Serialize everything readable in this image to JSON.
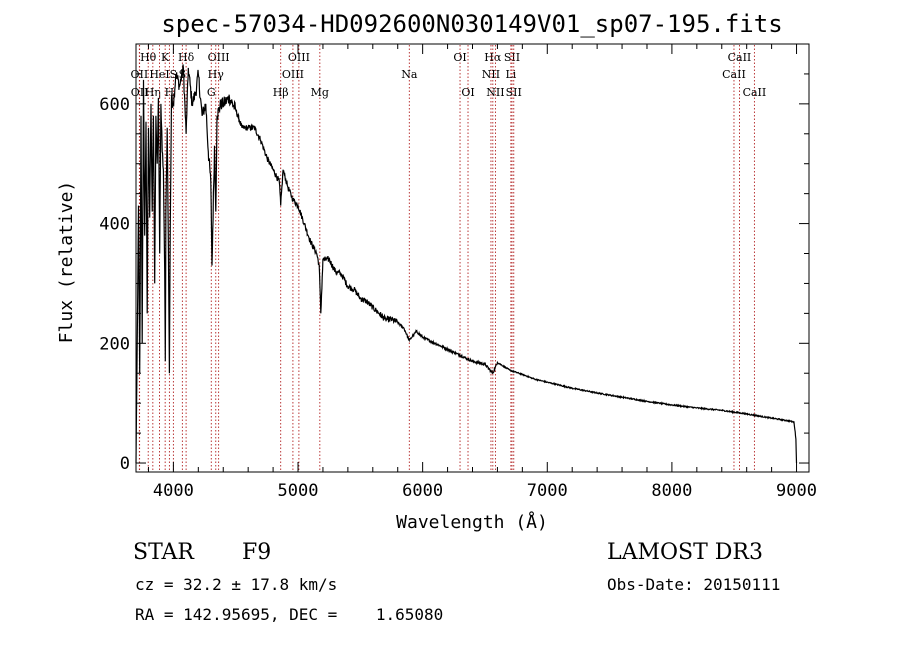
{
  "chart_data": {
    "type": "line",
    "title": "spec-57034-HD092600N030149V01_sp07-195.fits",
    "xlabel": "Wavelength (Å)",
    "ylabel": "Flux (relative)",
    "xlim": [
      3700,
      9100
    ],
    "ylim": [
      -15,
      700
    ],
    "x_ticks": [
      4000,
      5000,
      6000,
      7000,
      8000,
      9000
    ],
    "y_ticks": [
      0,
      200,
      400,
      600
    ],
    "series": [
      {
        "name": "flux",
        "x": [
          3700,
          3710,
          3720,
          3730,
          3740,
          3750,
          3760,
          3770,
          3780,
          3790,
          3800,
          3810,
          3820,
          3830,
          3840,
          3850,
          3860,
          3870,
          3880,
          3890,
          3900,
          3910,
          3920,
          3930,
          3935,
          3940,
          3950,
          3960,
          3968,
          3975,
          3985,
          4000,
          4020,
          4050,
          4080,
          4102,
          4120,
          4150,
          4180,
          4200,
          4230,
          4260,
          4280,
          4300,
          4310,
          4330,
          4340,
          4350,
          4380,
          4400,
          4450,
          4500,
          4550,
          4600,
          4650,
          4700,
          4750,
          4800,
          4850,
          4861,
          4880,
          4920,
          4960,
          5000,
          5050,
          5100,
          5150,
          5170,
          5183,
          5200,
          5250,
          5300,
          5350,
          5400,
          5450,
          5500,
          5550,
          5600,
          5650,
          5700,
          5750,
          5800,
          5850,
          5893,
          5950,
          6000,
          6100,
          6200,
          6300,
          6400,
          6500,
          6563,
          6600,
          6700,
          6800,
          6900,
          7000,
          7200,
          7400,
          7600,
          7800,
          8000,
          8200,
          8400,
          8600,
          8800,
          8950,
          8980,
          8995,
          9000
        ],
        "y": [
          0,
          200,
          430,
          150,
          580,
          200,
          640,
          380,
          570,
          250,
          560,
          410,
          600,
          420,
          580,
          300,
          580,
          500,
          610,
          350,
          600,
          520,
          490,
          320,
          170,
          420,
          560,
          360,
          150,
          400,
          610,
          600,
          650,
          630,
          660,
          550,
          660,
          600,
          620,
          650,
          580,
          600,
          520,
          470,
          330,
          530,
          420,
          580,
          600,
          600,
          610,
          590,
          560,
          560,
          560,
          540,
          510,
          490,
          470,
          430,
          490,
          460,
          440,
          430,
          400,
          370,
          350,
          330,
          250,
          340,
          340,
          320,
          315,
          295,
          290,
          275,
          270,
          260,
          250,
          240,
          240,
          235,
          225,
          205,
          220,
          210,
          200,
          190,
          180,
          170,
          165,
          150,
          168,
          155,
          148,
          140,
          135,
          125,
          117,
          110,
          103,
          97,
          92,
          88,
          82,
          75,
          70,
          68,
          40,
          0
        ]
      }
    ],
    "line_markers": [
      {
        "label": "Hθ",
        "wl": 3798,
        "row": 0
      },
      {
        "label": "OII",
        "wl": 3727,
        "row": 1
      },
      {
        "label": "OII",
        "wl": 3729,
        "row": 2
      },
      {
        "label": "Hη",
        "wl": 3835,
        "row": 2
      },
      {
        "label": "HeI",
        "wl": 3889,
        "row": 1
      },
      {
        "label": "K",
        "wl": 3934,
        "row": 0
      },
      {
        "label": "H",
        "wl": 3968,
        "row": 2
      },
      {
        "label": "S",
        "wl": 4000,
        "row": 1
      },
      {
        "label": "Hδ",
        "wl": 4102,
        "row": 0
      },
      {
        "label": "S",
        "wl": 4072,
        "row": 1
      },
      {
        "label": "OIII",
        "wl": 4363,
        "row": 0
      },
      {
        "label": "Hγ",
        "wl": 4340,
        "row": 1
      },
      {
        "label": "G",
        "wl": 4304,
        "row": 2
      },
      {
        "label": "Hβ",
        "wl": 4861,
        "row": 2
      },
      {
        "label": "OIII",
        "wl": 5007,
        "row": 0
      },
      {
        "label": "OIII",
        "wl": 4959,
        "row": 1
      },
      {
        "label": "Mg",
        "wl": 5175,
        "row": 2
      },
      {
        "label": "Na",
        "wl": 5893,
        "row": 1
      },
      {
        "label": "OI",
        "wl": 6300,
        "row": 0
      },
      {
        "label": "OI",
        "wl": 6364,
        "row": 2
      },
      {
        "label": "Hα",
        "wl": 6563,
        "row": 0
      },
      {
        "label": "SII",
        "wl": 6717,
        "row": 0
      },
      {
        "label": "NII",
        "wl": 6548,
        "row": 1
      },
      {
        "label": "Li",
        "wl": 6708,
        "row": 1
      },
      {
        "label": "NII",
        "wl": 6584,
        "row": 2
      },
      {
        "label": "SII",
        "wl": 6731,
        "row": 2
      },
      {
        "label": "CaII",
        "wl": 8542,
        "row": 0
      },
      {
        "label": "CaII",
        "wl": 8498,
        "row": 1
      },
      {
        "label": "CaII",
        "wl": 8662,
        "row": 2
      }
    ]
  },
  "info": {
    "object_class": "STAR",
    "subclass": "F9",
    "survey": "LAMOST DR3",
    "cz": "cz = 32.2 ± 17.8 km/s",
    "obs_date": "Obs-Date: 20150111",
    "coords": "RA = 142.95695, DEC =    1.65080"
  }
}
